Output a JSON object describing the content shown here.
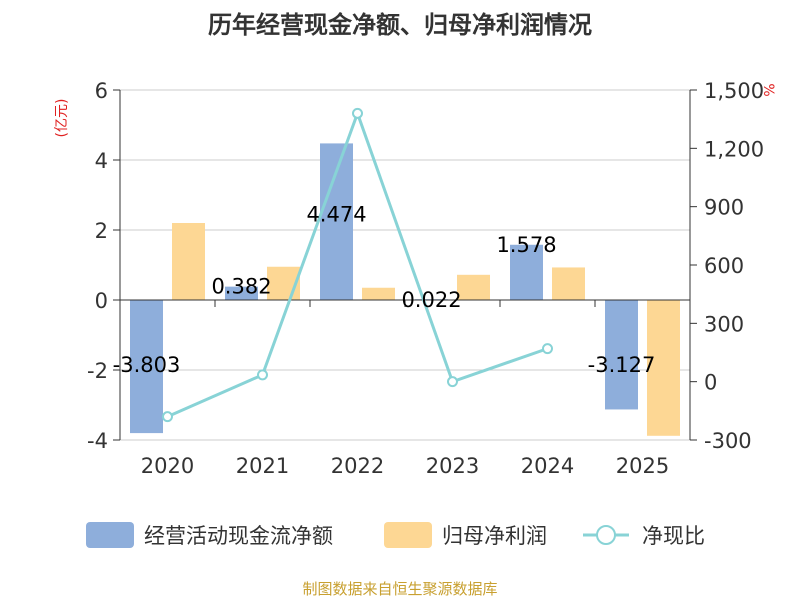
{
  "chart_data": {
    "type": "bar+line",
    "title": "历年经营现金净额、归母净利润情况",
    "left_axis_unit": "(亿元)",
    "right_axis_unit": "%",
    "categories": [
      "2020",
      "2021",
      "2022",
      "2023",
      "2024",
      "2025"
    ],
    "ylim_left": [
      -4,
      6
    ],
    "yticks_left": [
      -4,
      -2,
      0,
      2,
      4,
      6
    ],
    "ytick_labels_left": [
      "-4",
      "-2",
      "0",
      "2",
      "4",
      "6"
    ],
    "ylim_right": [
      -300,
      1500
    ],
    "yticks_right": [
      -300,
      0,
      300,
      600,
      900,
      1200,
      1500
    ],
    "ytick_labels_right": [
      "-300",
      "0",
      "300",
      "600",
      "900",
      "1,200",
      "1,500"
    ],
    "series": [
      {
        "name": "经营活动现金流净额",
        "type": "bar",
        "axis": "left",
        "color": "#8eaedb",
        "values": [
          -3.803,
          0.382,
          4.474,
          0.022,
          1.578,
          -3.127
        ],
        "labels": [
          "-3.803",
          "0.382",
          "4.474",
          "0.022",
          "1.578",
          "-3.127"
        ]
      },
      {
        "name": "归母净利润",
        "type": "bar",
        "axis": "left",
        "color": "#fdd794",
        "values": [
          2.2,
          0.95,
          0.35,
          0.72,
          0.93,
          -3.88
        ]
      },
      {
        "name": "净现比",
        "type": "line",
        "axis": "right",
        "color": "#88d3d6",
        "values": [
          -180,
          35,
          1380,
          0,
          170,
          null
        ]
      }
    ]
  },
  "source": "制图数据来自恒生聚源数据库"
}
